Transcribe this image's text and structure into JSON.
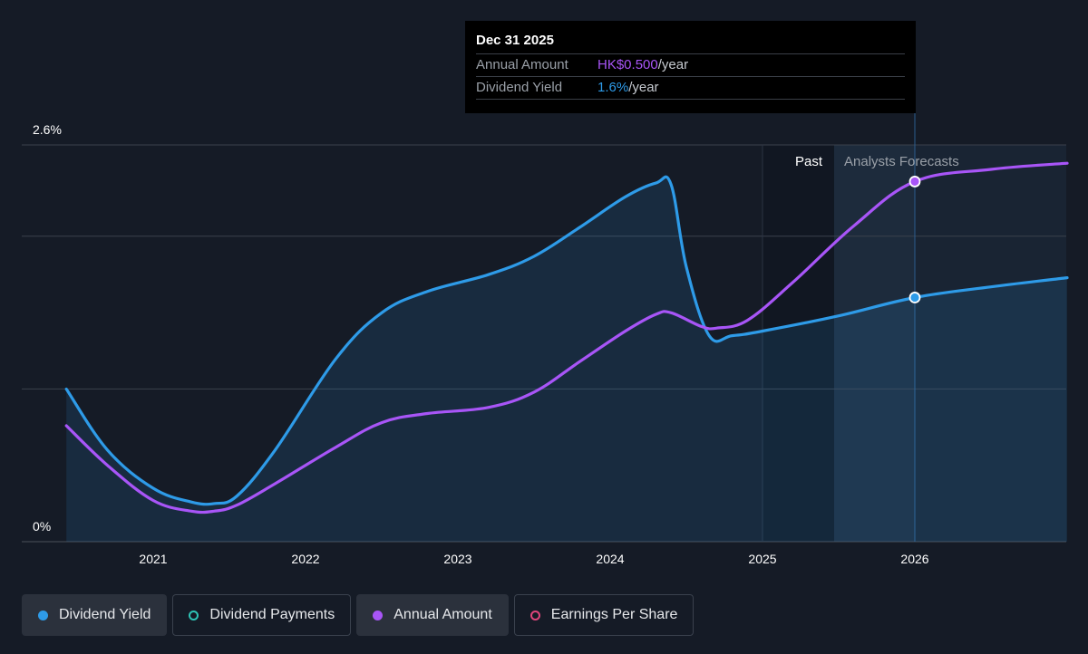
{
  "chart_data": {
    "type": "line",
    "y_axis": {
      "top_label": "2.6%",
      "bottom_label": "0%",
      "ylim": [
        0,
        2.6
      ]
    },
    "x_ticks": [
      "2021",
      "2022",
      "2023",
      "2024",
      "2025",
      "2026"
    ],
    "region_labels": {
      "past": "Past",
      "forecast": "Analysts Forecasts"
    },
    "series": [
      {
        "name": "Dividend Yield",
        "color": "#2e9be8",
        "area": true,
        "points": [
          [
            2020.43,
            1.0
          ],
          [
            2020.7,
            0.6
          ],
          [
            2021.0,
            0.35
          ],
          [
            2021.25,
            0.26
          ],
          [
            2021.4,
            0.25
          ],
          [
            2021.55,
            0.3
          ],
          [
            2021.8,
            0.6
          ],
          [
            2022.2,
            1.2
          ],
          [
            2022.5,
            1.5
          ],
          [
            2022.8,
            1.64
          ],
          [
            2023.2,
            1.75
          ],
          [
            2023.5,
            1.87
          ],
          [
            2023.8,
            2.06
          ],
          [
            2024.1,
            2.26
          ],
          [
            2024.3,
            2.35
          ],
          [
            2024.4,
            2.34
          ],
          [
            2024.5,
            1.8
          ],
          [
            2024.65,
            1.35
          ],
          [
            2024.8,
            1.35
          ],
          [
            2025.0,
            1.38
          ],
          [
            2025.5,
            1.48
          ],
          [
            2026.0,
            1.6
          ],
          [
            2026.5,
            1.67
          ],
          [
            2027.0,
            1.73
          ]
        ]
      },
      {
        "name": "Annual Amount",
        "color": "#a855f7",
        "area": false,
        "points": [
          [
            2020.43,
            0.76
          ],
          [
            2020.7,
            0.5
          ],
          [
            2021.0,
            0.27
          ],
          [
            2021.25,
            0.2
          ],
          [
            2021.4,
            0.2
          ],
          [
            2021.55,
            0.24
          ],
          [
            2021.8,
            0.38
          ],
          [
            2022.2,
            0.62
          ],
          [
            2022.5,
            0.78
          ],
          [
            2022.8,
            0.84
          ],
          [
            2023.2,
            0.88
          ],
          [
            2023.5,
            0.98
          ],
          [
            2023.8,
            1.18
          ],
          [
            2024.1,
            1.38
          ],
          [
            2024.3,
            1.49
          ],
          [
            2024.4,
            1.5
          ],
          [
            2024.6,
            1.41
          ],
          [
            2024.7,
            1.4
          ],
          [
            2024.9,
            1.45
          ],
          [
            2025.2,
            1.7
          ],
          [
            2025.6,
            2.07
          ],
          [
            2026.0,
            2.36
          ],
          [
            2026.5,
            2.44
          ],
          [
            2027.0,
            2.48
          ]
        ]
      }
    ],
    "highlight": {
      "x": 2026.0,
      "yield": 1.6,
      "amount": 2.36
    }
  },
  "tooltip": {
    "date": "Dec 31 2025",
    "amount_label": "Annual Amount",
    "amount_value": "HK$0.500",
    "amount_unit": "/year",
    "yield_label": "Dividend Yield",
    "yield_value": "1.6%",
    "yield_unit": "/year"
  },
  "legend": [
    {
      "label": "Dividend Yield",
      "color": "#2e9be8",
      "filled": true,
      "active": true
    },
    {
      "label": "Dividend Payments",
      "color": "#2ec4b6",
      "filled": false,
      "active": false
    },
    {
      "label": "Annual Amount",
      "color": "#a855f7",
      "filled": true,
      "active": true
    },
    {
      "label": "Earnings Per Share",
      "color": "#e0457b",
      "filled": false,
      "active": false
    }
  ]
}
